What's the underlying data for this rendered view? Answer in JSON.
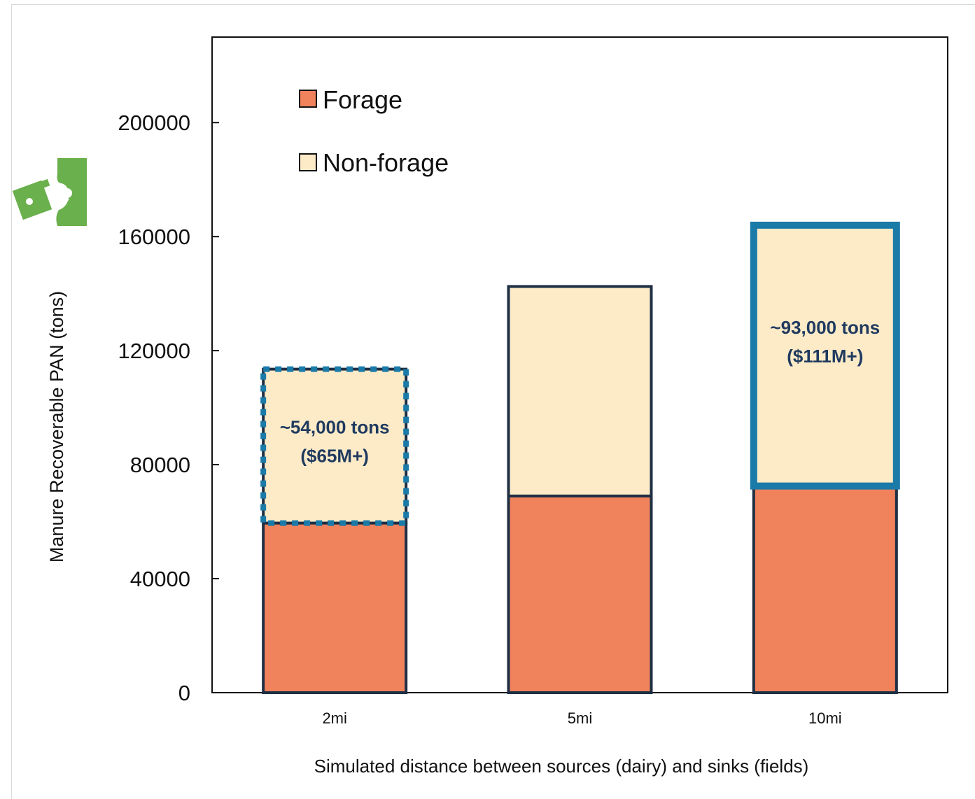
{
  "chart_data": {
    "type": "bar",
    "stacked": true,
    "categories": [
      "2mi",
      "5mi",
      "10mi"
    ],
    "series": [
      {
        "name": "Forage",
        "color": "#f0825c",
        "values": [
          59500,
          69000,
          72500
        ]
      },
      {
        "name": "Non-forage",
        "color": "#fdebc8",
        "values": [
          54000,
          73500,
          91500
        ]
      }
    ],
    "annotations": [
      {
        "category": "2mi",
        "line1": "~54,000 tons",
        "line2": "($65M+)",
        "border_color": "#1a7aa8",
        "style": "dotted"
      },
      {
        "category": "10mi",
        "line1": "~93,000 tons",
        "line2": "($111M+)",
        "border_color": "#1a7aa8",
        "style": "solid"
      }
    ],
    "xlabel": "Simulated distance between sources (dairy) and sinks (fields)",
    "ylabel": "Manure  Recoverable PAN (tons)",
    "yticks": [
      0,
      40000,
      80000,
      120000,
      160000,
      200000
    ],
    "ylim": [
      0,
      230000
    ],
    "grid": false,
    "legend_position": "top-left"
  },
  "decor": {
    "icon": "fertilizer-bag-icon",
    "icon_color": "#6ab04c"
  }
}
